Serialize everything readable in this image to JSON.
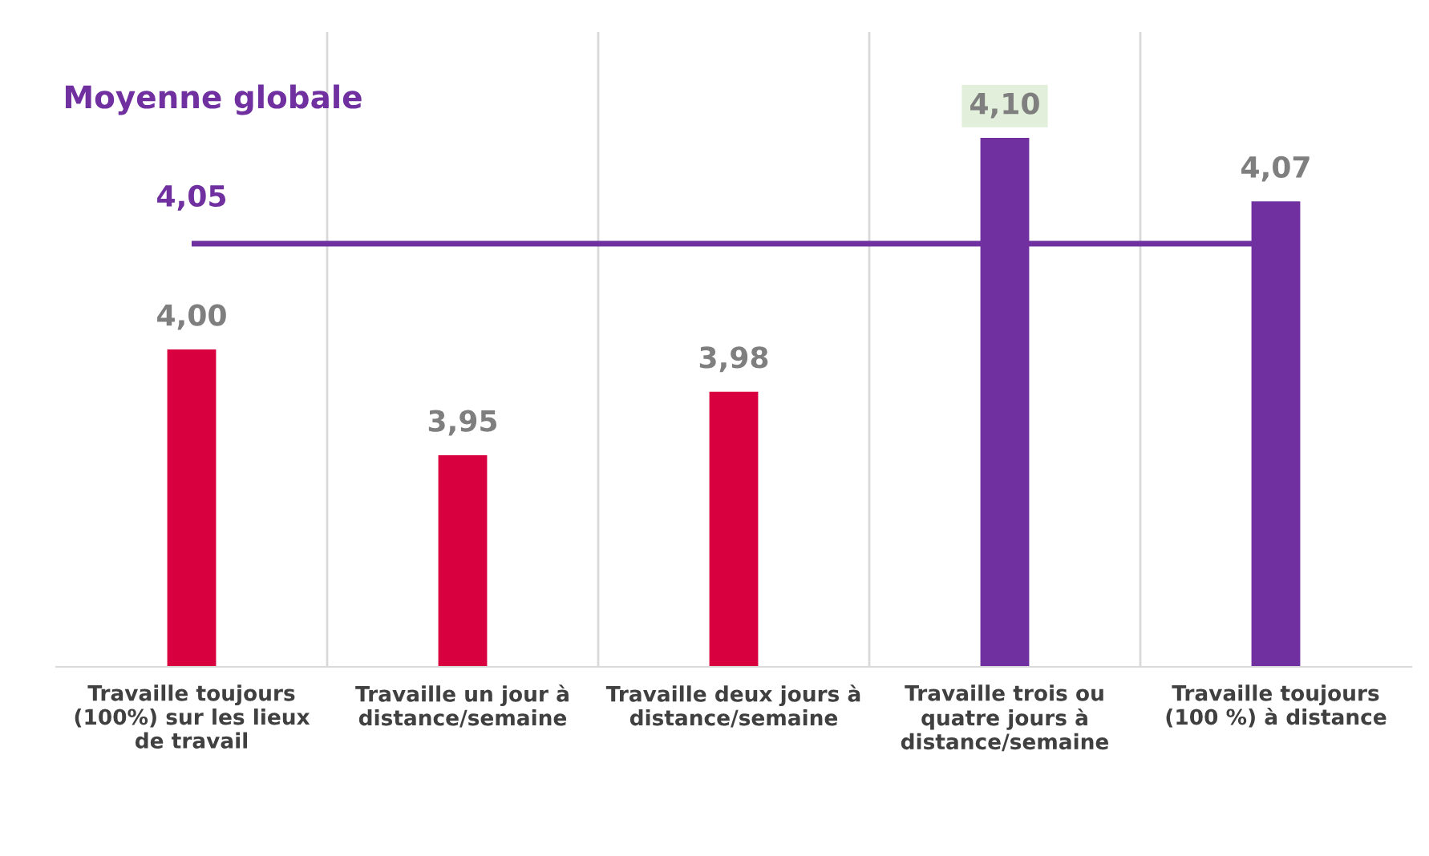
{
  "chart_data": {
    "type": "bar",
    "categories": [
      "Travaille toujours (100%) sur les lieux de travail",
      "Travaille un jour à distance/semaine",
      "Travaille deux jours à distance/semaine",
      "Travaille trois ou quatre jours à distance/semaine",
      "Travaille toujours (100 %) à distance"
    ],
    "values": [
      4.0,
      3.95,
      3.98,
      4.1,
      4.07
    ],
    "colors": [
      "#d9003f",
      "#d9003f",
      "#d9003f",
      "#7030a0",
      "#7030a0"
    ],
    "value_labels": [
      "4,00",
      "3,95",
      "3,98",
      "4,10",
      "4,07"
    ],
    "ylim": [
      3.85,
      4.15
    ],
    "tick_labels": "x",
    "grid": "x",
    "legend": false,
    "ref_lines": [
      {
        "axis": "y",
        "value": 4.05,
        "label": "4,05",
        "color": "#7030a0",
        "line_style": "solid"
      }
    ],
    "annotations": [
      "Moyenne globale"
    ]
  }
}
